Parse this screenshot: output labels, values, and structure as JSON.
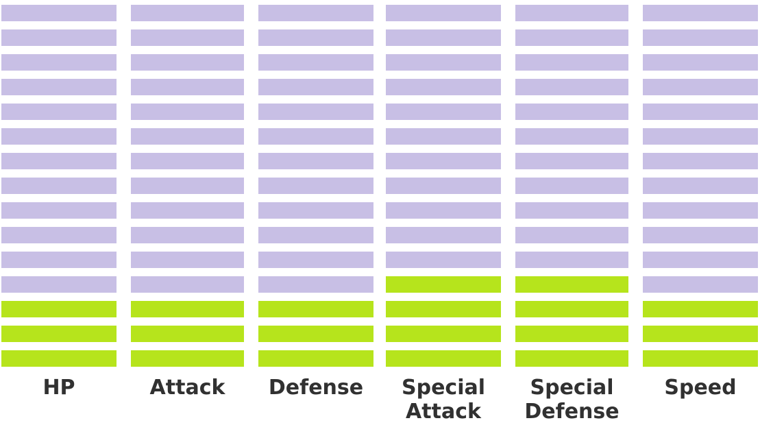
{
  "chart_data": {
    "type": "bar",
    "categories": [
      "HP",
      "Attack",
      "Defense",
      "Special Attack",
      "Special Defense",
      "Speed"
    ],
    "category_lines": [
      [
        "HP"
      ],
      [
        "Attack"
      ],
      [
        "Defense"
      ],
      [
        "Special",
        "Attack"
      ],
      [
        "Special",
        "Defense"
      ],
      [
        "Speed"
      ]
    ],
    "values": [
      3,
      3,
      3,
      4,
      4,
      3
    ],
    "segments_total": 15,
    "filled_color": "#b6e41c",
    "empty_color": "#c8bfe5",
    "label_color": "#313131"
  }
}
